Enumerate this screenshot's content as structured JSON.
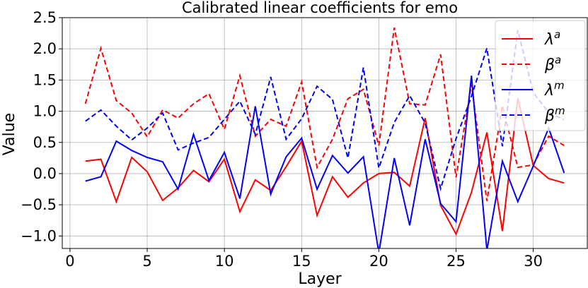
{
  "chart_data": {
    "type": "line",
    "title": "Calibrated linear coefficients for emo",
    "xlabel": "Layer",
    "ylabel": "Value",
    "xlim": [
      -0.5,
      33.5
    ],
    "ylim": [
      -1.2,
      2.5
    ],
    "xticks": [
      0,
      5,
      10,
      15,
      20,
      25,
      30
    ],
    "yticks": [
      -1.0,
      -0.5,
      0.0,
      0.5,
      1.0,
      1.5,
      2.0,
      2.5
    ],
    "grid": true,
    "legend_position": "top-right",
    "x": [
      1,
      2,
      3,
      4,
      5,
      6,
      7,
      8,
      9,
      10,
      11,
      12,
      13,
      14,
      15,
      16,
      17,
      18,
      19,
      20,
      21,
      22,
      23,
      24,
      25,
      26,
      27,
      28,
      29,
      30,
      31,
      32
    ],
    "series": [
      {
        "name": "λ",
        "sup": "a",
        "color": "#ff0000",
        "dash": "solid",
        "values": [
          0.2,
          0.23,
          -0.45,
          0.26,
          0.03,
          -0.43,
          -0.23,
          0.05,
          -0.13,
          0.23,
          -0.61,
          -0.1,
          -0.27,
          0.11,
          0.52,
          -0.67,
          -0.05,
          -0.38,
          -0.15,
          0.0,
          0.02,
          -0.2,
          0.89,
          -0.51,
          -0.97,
          -0.3,
          0.66,
          -0.92,
          1.21,
          0.13,
          -0.08,
          -0.15
        ]
      },
      {
        "name": "β",
        "sup": "a",
        "color": "#ff0000",
        "dash": "dashed",
        "values": [
          1.12,
          2.01,
          1.17,
          0.97,
          0.59,
          1.02,
          0.89,
          1.12,
          1.28,
          0.71,
          1.57,
          0.6,
          0.87,
          0.76,
          1.47,
          0.1,
          0.55,
          1.2,
          1.35,
          0.45,
          2.34,
          1.12,
          1.1,
          1.91,
          -0.06,
          1.43,
          -0.44,
          1.09,
          0.1,
          0.14,
          0.6,
          0.45
        ]
      },
      {
        "name": "λ",
        "sup": "m",
        "color": "#0000ff",
        "dash": "solid",
        "values": [
          -0.12,
          -0.05,
          0.52,
          0.37,
          0.26,
          0.19,
          -0.25,
          0.63,
          -0.11,
          0.34,
          -0.4,
          1.08,
          -0.33,
          0.27,
          0.57,
          -0.25,
          0.29,
          0.01,
          0.27,
          -1.27,
          0.25,
          -0.83,
          0.55,
          -0.48,
          -0.77,
          1.57,
          -1.23,
          0.2,
          -0.45,
          0.12,
          0.73,
          0.01
        ]
      },
      {
        "name": "β",
        "sup": "m",
        "color": "#0000ff",
        "dash": "dashed",
        "values": [
          0.84,
          1.02,
          0.76,
          0.54,
          0.73,
          0.97,
          0.38,
          0.49,
          0.58,
          0.87,
          1.16,
          0.63,
          1.55,
          0.55,
          0.88,
          1.4,
          1.19,
          0.25,
          1.7,
          0.09,
          0.82,
          1.25,
          0.81,
          -0.24,
          0.56,
          1.24,
          2.01,
          0.44,
          2.3,
          1.3,
          0.98,
          0.86
        ]
      }
    ]
  }
}
